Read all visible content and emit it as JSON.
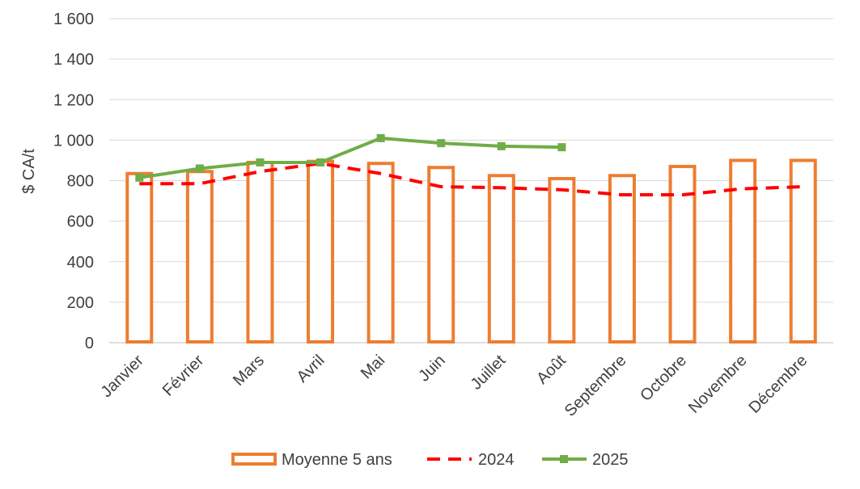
{
  "chart_data": {
    "type": "bar",
    "title": "",
    "xlabel": "",
    "ylabel": "$ CA/t",
    "ylim": [
      0,
      1600
    ],
    "yticks": [
      "0",
      "200",
      "400",
      "600",
      "800",
      "1 000",
      "1 200",
      "1 400",
      "1 600"
    ],
    "grid": true,
    "legend_position": "bottom",
    "categories": [
      "Janvier",
      "Février",
      "Mars",
      "Avril",
      "Mai",
      "Juin",
      "Juillet",
      "Août",
      "Septembre",
      "Octobre",
      "Novembre",
      "Décembre"
    ],
    "series": [
      {
        "name": "Moyenne 5 ans",
        "kind": "bar",
        "style": "hollow",
        "color": "#ED7D31",
        "values": [
          835,
          845,
          890,
          895,
          885,
          865,
          825,
          810,
          825,
          870,
          900,
          900
        ]
      },
      {
        "name": "2024",
        "kind": "line",
        "style": "dashed",
        "color": "#FF0000",
        "values": [
          785,
          785,
          845,
          885,
          835,
          770,
          765,
          755,
          730,
          730,
          760,
          770
        ]
      },
      {
        "name": "2025",
        "kind": "line",
        "style": "solid-square-markers",
        "color": "#70AD47",
        "values": [
          815,
          860,
          890,
          890,
          1010,
          985,
          970,
          965,
          null,
          null,
          null,
          null
        ]
      }
    ]
  }
}
